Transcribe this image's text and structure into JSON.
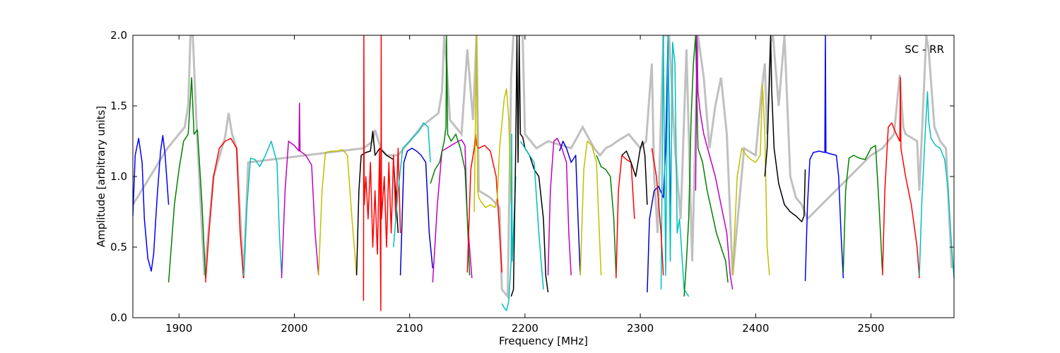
{
  "chart_data": {
    "type": "line",
    "title": "",
    "xlabel": "Frequency [MHz]",
    "ylabel": "Amplitude [arbitrary units]",
    "annotation": "SC - RR",
    "xlim": [
      1860,
      2572
    ],
    "ylim": [
      0.0,
      2.0
    ],
    "x_ticks": [
      1900,
      2000,
      2100,
      2200,
      2300,
      2400,
      2500
    ],
    "y_ticks": [
      0.0,
      0.5,
      1.0,
      1.5,
      2.0
    ],
    "y_tick_labels": [
      "0.0",
      "0.5",
      "1.0",
      "1.5",
      "2.0"
    ],
    "grid": false,
    "legend": "none",
    "background_color": "#c0c0c0",
    "background_series": {
      "x": [
        1860,
        1890,
        1905,
        1908,
        1910,
        1912,
        1915,
        1922,
        1930,
        1940,
        1943,
        1946,
        1950,
        1956,
        1960,
        2060,
        2068,
        2070,
        2075,
        2080,
        2090,
        2100,
        2110,
        2125,
        2128,
        2130,
        2132,
        2135,
        2140,
        2145,
        2150,
        2155,
        2158,
        2160,
        2170,
        2178,
        2180,
        2185,
        2188,
        2190,
        2195,
        2198,
        2200,
        2205,
        2210,
        2220,
        2240,
        2250,
        2260,
        2265,
        2270,
        2275,
        2280,
        2290,
        2300,
        2305,
        2310,
        2312,
        2315,
        2320,
        2325,
        2330,
        2335,
        2340,
        2345,
        2350,
        2355,
        2360,
        2365,
        2370,
        2375,
        2380,
        2390,
        2400,
        2405,
        2408,
        2410,
        2413,
        2415,
        2420,
        2425,
        2430,
        2435,
        2440,
        2445,
        2500,
        2510,
        2520,
        2525,
        2528,
        2530,
        2540,
        2542,
        2545,
        2548,
        2550,
        2555,
        2560,
        2565,
        2570
      ],
      "y": [
        0.8,
        1.2,
        1.35,
        1.5,
        2.0,
        2.0,
        1.4,
        0.3,
        1.0,
        1.28,
        1.45,
        1.3,
        1.2,
        0.28,
        1.1,
        1.2,
        1.25,
        1.33,
        1.2,
        1.15,
        1.15,
        1.25,
        1.35,
        1.45,
        1.6,
        2.0,
        1.8,
        1.4,
        1.35,
        1.3,
        1.9,
        1.4,
        2.0,
        0.9,
        0.85,
        0.78,
        0.2,
        0.15,
        1.7,
        2.0,
        2.0,
        2.0,
        1.3,
        1.25,
        1.2,
        1.25,
        1.2,
        1.35,
        1.2,
        1.15,
        1.2,
        1.22,
        1.25,
        1.3,
        1.2,
        1.25,
        1.8,
        1.0,
        0.6,
        2.0,
        2.0,
        1.2,
        0.7,
        1.9,
        0.4,
        2.0,
        1.7,
        1.2,
        1.5,
        1.7,
        1.3,
        0.3,
        1.2,
        1.15,
        1.6,
        1.8,
        1.3,
        1.95,
        2.0,
        1.5,
        2.0,
        1.0,
        0.85,
        0.8,
        0.7,
        1.15,
        1.2,
        1.3,
        1.72,
        1.35,
        1.3,
        1.25,
        0.9,
        1.45,
        2.0,
        1.9,
        1.35,
        1.25,
        1.2,
        0.35
      ]
    },
    "series": [
      {
        "color": "#0000ff",
        "x": [
          1860,
          1862,
          1865,
          1868,
          1870,
          1873,
          1876,
          1878,
          1881,
          1884,
          1886,
          1888,
          1891
        ],
        "y": [
          0.72,
          1.15,
          1.27,
          1.1,
          0.7,
          0.42,
          0.33,
          0.45,
          0.85,
          1.18,
          1.29,
          1.15,
          0.8
        ]
      },
      {
        "color": "#008000",
        "x": [
          1891,
          1896,
          1900,
          1904,
          1908,
          1911,
          1913,
          1916,
          1920,
          1923
        ],
        "y": [
          0.25,
          0.8,
          1.05,
          1.25,
          1.3,
          1.7,
          1.3,
          1.33,
          0.8,
          0.28
        ]
      },
      {
        "color": "#ff0000",
        "x": [
          1923,
          1926,
          1930,
          1935,
          1940,
          1945,
          1950,
          1953,
          1956
        ],
        "y": [
          0.25,
          0.6,
          1.0,
          1.2,
          1.25,
          1.27,
          1.2,
          0.6,
          0.28
        ]
      },
      {
        "color": "#00bfbf",
        "x": [
          1956,
          1959,
          1962,
          1966,
          1970,
          1975,
          1980,
          1985,
          1987,
          1989
        ],
        "y": [
          0.3,
          0.8,
          1.13,
          1.12,
          1.07,
          1.15,
          1.25,
          1.1,
          0.6,
          0.3
        ]
      },
      {
        "color": "#bf00bf",
        "x": [
          1989,
          1992,
          1995,
          2000,
          2004,
          2004.5,
          2005,
          2010,
          2015,
          2018,
          2021
        ],
        "y": [
          0.28,
          0.9,
          1.25,
          1.22,
          1.18,
          1.52,
          1.18,
          1.15,
          1.08,
          0.6,
          0.3
        ]
      },
      {
        "color": "#bfbf00",
        "x": [
          2021,
          2024,
          2027,
          2032,
          2037,
          2042,
          2046,
          2050,
          2054
        ],
        "y": [
          0.3,
          0.9,
          1.17,
          1.18,
          1.18,
          1.19,
          1.15,
          0.7,
          0.3
        ]
      },
      {
        "color": "#000000",
        "x": [
          2054,
          2056,
          2058,
          2062,
          2066,
          2068,
          2070,
          2074,
          2080,
          2086,
          2090
        ],
        "y": [
          0.3,
          0.9,
          1.15,
          1.17,
          1.18,
          1.32,
          1.15,
          1.2,
          1.15,
          1.12,
          0.6
        ]
      },
      {
        "color": "#ff0000",
        "x": [
          2060,
          2060.3,
          2060.6,
          2062,
          2064,
          2066,
          2068,
          2070,
          2072,
          2074,
          2075,
          2075.3,
          2075.6,
          2078,
          2080,
          2082,
          2084,
          2086,
          2088,
          2090,
          2092
        ],
        "y": [
          0.12,
          2.0,
          0.8,
          1.0,
          0.7,
          1.1,
          0.5,
          0.9,
          0.45,
          1.2,
          0.05,
          2.0,
          0.7,
          1.0,
          0.5,
          1.1,
          0.6,
          1.15,
          0.7,
          1.2,
          0.6
        ]
      },
      {
        "color": "#0000cc",
        "x": [
          2092,
          2095,
          2098,
          2102,
          2106,
          2110,
          2114,
          2117,
          2120
        ],
        "y": [
          0.3,
          1.1,
          1.18,
          1.2,
          1.18,
          1.15,
          1.1,
          0.6,
          0.35
        ]
      },
      {
        "color": "#00bfbf",
        "x": [
          2086,
          2090,
          2094,
          2100,
          2108,
          2112,
          2116,
          2118
        ],
        "y": [
          0.5,
          0.9,
          1.2,
          1.25,
          1.32,
          1.38,
          1.35,
          1.1
        ]
      },
      {
        "color": "#bf00bf",
        "x": [
          2120,
          2124,
          2128,
          2132,
          2136,
          2140,
          2145,
          2148,
          2150,
          2154
        ],
        "y": [
          0.25,
          0.8,
          1.18,
          1.2,
          1.22,
          1.24,
          1.26,
          1.22,
          0.7,
          0.28
        ]
      },
      {
        "color": "#008000",
        "x": [
          2118,
          2122,
          2126,
          2130,
          2131.5,
          2132,
          2133,
          2136,
          2140,
          2144,
          2148,
          2150,
          2152
        ],
        "y": [
          0.95,
          1.05,
          1.1,
          1.25,
          1.35,
          2.0,
          1.3,
          1.25,
          1.3,
          1.2,
          1.05,
          0.7,
          0.3
        ]
      },
      {
        "color": "#ff0000",
        "x": [
          2150,
          2153,
          2156,
          2157,
          2158,
          2160,
          2165,
          2170,
          2175,
          2178,
          2180
        ],
        "y": [
          0.32,
          1.05,
          1.2,
          1.3,
          1.22,
          1.2,
          1.22,
          1.18,
          1.0,
          0.6,
          0.32
        ]
      },
      {
        "color": "#bfbf00",
        "x": [
          2156,
          2158,
          2159,
          2160,
          2162,
          2166,
          2170,
          2174,
          2176,
          2178,
          2182,
          2184,
          2186,
          2188
        ],
        "y": [
          0.75,
          2.0,
          0.9,
          0.85,
          0.82,
          0.78,
          0.8,
          0.78,
          0.85,
          1.2,
          1.55,
          1.62,
          1.4,
          0.8
        ]
      },
      {
        "color": "#00bfbf",
        "x": [
          2180,
          2182,
          2184,
          2186,
          2188,
          2188.5,
          2189,
          2190,
          2192
        ],
        "y": [
          0.1,
          0.07,
          0.05,
          0.12,
          0.4,
          1.3,
          0.4,
          0.6,
          1.0
        ]
      },
      {
        "color": "#000000",
        "x": [
          2188,
          2190,
          2192,
          2193,
          2194,
          2195,
          2196,
          2198,
          2200,
          2204,
          2208,
          2212,
          2216,
          2218,
          2220
        ],
        "y": [
          0.15,
          0.2,
          1.2,
          2.0,
          1.1,
          2.0,
          1.3,
          1.28,
          1.2,
          1.15,
          1.05,
          1.0,
          0.7,
          0.3,
          0.18
        ]
      },
      {
        "color": "#00bfbf",
        "x": [
          2196,
          2200,
          2204,
          2208,
          2212,
          2214,
          2216
        ],
        "y": [
          1.25,
          1.2,
          1.15,
          1.1,
          0.6,
          0.4,
          0.2
        ]
      },
      {
        "color": "#bf00bf",
        "x": [
          2220,
          2222,
          2225,
          2228,
          2232,
          2236,
          2238,
          2240
        ],
        "y": [
          0.3,
          0.9,
          1.25,
          1.27,
          1.2,
          1.1,
          0.6,
          0.3
        ]
      },
      {
        "color": "#0000cc",
        "x": [
          2230,
          2233,
          2236,
          2240,
          2244,
          2246,
          2248
        ],
        "y": [
          1.18,
          1.25,
          1.2,
          1.1,
          1.15,
          0.7,
          0.3
        ]
      },
      {
        "color": "#bfbf00",
        "x": [
          2248,
          2251,
          2254,
          2258,
          2262,
          2264,
          2266
        ],
        "y": [
          0.3,
          1.05,
          1.25,
          1.22,
          1.1,
          0.7,
          0.3
        ]
      },
      {
        "color": "#008000",
        "x": [
          2262,
          2266,
          2270,
          2274,
          2277,
          2279
        ],
        "y": [
          1.15,
          1.07,
          1.05,
          1.0,
          0.7,
          0.3
        ]
      },
      {
        "color": "#ff0000",
        "x": [
          2279,
          2281,
          2284,
          2288,
          2292,
          2295
        ],
        "y": [
          0.28,
          0.9,
          1.15,
          1.12,
          1.1,
          0.7
        ]
      },
      {
        "color": "#000000",
        "x": [
          2284,
          2288,
          2292,
          2296,
          2300,
          2302,
          2304,
          2306
        ],
        "y": [
          1.15,
          1.18,
          1.1,
          1.0,
          1.2,
          1.25,
          1.15,
          0.8
        ]
      },
      {
        "color": "#0000cc",
        "x": [
          2306,
          2308,
          2312,
          2316,
          2320,
          2322,
          2324,
          2326
        ],
        "y": [
          0.18,
          0.7,
          0.9,
          0.93,
          0.85,
          1.2,
          2.0,
          0.8
        ]
      },
      {
        "color": "#00bfbf",
        "x": [
          2318,
          2320,
          2322,
          2324,
          2326,
          2328,
          2330,
          2332,
          2334,
          2338,
          2342
        ],
        "y": [
          0.2,
          2.0,
          0.3,
          2.0,
          0.4,
          1.95,
          1.8,
          0.6,
          0.7,
          0.2,
          0.15
        ]
      },
      {
        "color": "#ff0000",
        "x": [
          2310,
          2314,
          2318,
          2320
        ],
        "y": [
          1.2,
          1.0,
          0.6,
          0.3
        ]
      },
      {
        "color": "#008000",
        "x": [
          2338,
          2340,
          2342,
          2344,
          2346,
          2348,
          2350,
          2354,
          2358,
          2362,
          2366,
          2370,
          2374,
          2376
        ],
        "y": [
          0.15,
          0.4,
          0.7,
          1.4,
          1.8,
          2.0,
          1.2,
          1.1,
          0.9,
          0.75,
          0.6,
          0.5,
          0.4,
          0.25
        ]
      },
      {
        "color": "#bf00bf",
        "x": [
          2348,
          2349,
          2350,
          2352,
          2355,
          2360,
          2365,
          2370,
          2375,
          2378,
          2380
        ],
        "y": [
          0.9,
          2.0,
          1.6,
          1.45,
          1.3,
          1.15,
          1.0,
          0.8,
          0.6,
          0.3,
          0.2
        ]
      },
      {
        "color": "#bfbf00",
        "x": [
          2380,
          2384,
          2388,
          2392,
          2396,
          2400,
          2404,
          2406,
          2408,
          2410,
          2412
        ],
        "y": [
          0.3,
          1.0,
          1.2,
          1.15,
          1.12,
          1.1,
          1.15,
          1.65,
          1.3,
          0.5,
          0.3
        ]
      },
      {
        "color": "#000000",
        "x": [
          2408,
          2410,
          2412,
          2413,
          2414,
          2416,
          2420,
          2425,
          2430,
          2435,
          2440,
          2442,
          2443
        ],
        "y": [
          1.0,
          1.2,
          1.7,
          2.0,
          1.6,
          1.2,
          0.95,
          0.8,
          0.75,
          0.72,
          0.68,
          0.72,
          1.05
        ]
      },
      {
        "color": "#0000ff",
        "x": [
          2443,
          2445,
          2447,
          2450,
          2455,
          2460,
          2460.5,
          2461,
          2465,
          2470,
          2472,
          2474,
          2476
        ],
        "y": [
          0.26,
          0.8,
          1.12,
          1.17,
          1.18,
          1.17,
          2.0,
          1.17,
          1.16,
          1.15,
          1.0,
          0.6,
          0.28
        ]
      },
      {
        "color": "#008000",
        "x": [
          2476,
          2478,
          2481,
          2485,
          2490,
          2495,
          2500,
          2504,
          2507,
          2510
        ],
        "y": [
          0.32,
          0.9,
          1.13,
          1.15,
          1.13,
          1.12,
          1.2,
          1.22,
          0.8,
          0.32
        ]
      },
      {
        "color": "#ff0000",
        "x": [
          2510,
          2512,
          2515,
          2518,
          2522,
          2525,
          2525.5,
          2526,
          2530,
          2535,
          2540,
          2542
        ],
        "y": [
          0.3,
          0.9,
          1.35,
          1.38,
          1.3,
          1.25,
          1.7,
          1.2,
          1.0,
          0.8,
          0.5,
          0.28
        ]
      },
      {
        "color": "#00bfbf",
        "x": [
          2542,
          2544,
          2547,
          2549,
          2550,
          2552,
          2556,
          2560,
          2564,
          2567,
          2570,
          2572
        ],
        "y": [
          0.3,
          0.8,
          1.3,
          1.6,
          1.4,
          1.27,
          1.22,
          1.2,
          1.12,
          0.9,
          0.5,
          0.28
        ]
      }
    ]
  }
}
